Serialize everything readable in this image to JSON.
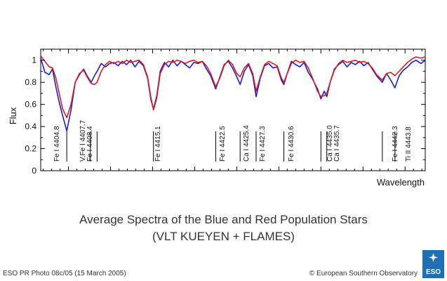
{
  "chart_data": {
    "type": "line",
    "title": "Average Spectra of the Blue and Red Population Stars",
    "subtitle": "(VLT KUEYEN + FLAMES)",
    "xlabel": "Wavelength",
    "ylabel": "Flux",
    "ylim": [
      0,
      1.1
    ],
    "xlim": [
      4401.7,
      4447.4
    ],
    "yticks": [
      "0",
      "0.2",
      "0.4",
      "0.6",
      "0.8",
      "1"
    ],
    "grid": false,
    "series": [
      {
        "color": "#1a1adc",
        "points": [
          [
            4401.7,
            1.02
          ],
          [
            4402.2,
            0.89
          ],
          [
            4402.7,
            0.87
          ],
          [
            4403.1,
            0.92
          ],
          [
            4403.5,
            0.76
          ],
          [
            4403.9,
            0.62
          ],
          [
            4404.3,
            0.5
          ],
          [
            4404.8,
            0.36
          ],
          [
            4405.3,
            0.55
          ],
          [
            4405.8,
            0.8
          ],
          [
            4406.3,
            0.87
          ],
          [
            4406.8,
            0.92
          ],
          [
            4407.2,
            0.86
          ],
          [
            4407.7,
            0.8
          ],
          [
            4408.1,
            0.86
          ],
          [
            4408.4,
            0.9
          ],
          [
            4408.9,
            0.97
          ],
          [
            4409.4,
            0.94
          ],
          [
            4409.9,
            0.97
          ],
          [
            4410.4,
            0.98
          ],
          [
            4410.9,
            0.95
          ],
          [
            4411.4,
            0.99
          ],
          [
            4411.9,
            0.96
          ],
          [
            4412.4,
            1.0
          ],
          [
            4412.9,
            0.94
          ],
          [
            4413.4,
            0.99
          ],
          [
            4413.9,
            0.95
          ],
          [
            4414.4,
            0.84
          ],
          [
            4414.8,
            0.64
          ],
          [
            4415.1,
            0.56
          ],
          [
            4415.5,
            0.68
          ],
          [
            4415.9,
            0.9
          ],
          [
            4416.4,
            0.98
          ],
          [
            4416.9,
            0.94
          ],
          [
            4417.4,
            1.0
          ],
          [
            4417.9,
            0.95
          ],
          [
            4418.4,
            0.99
          ],
          [
            4418.9,
            0.96
          ],
          [
            4419.4,
            0.93
          ],
          [
            4419.9,
            0.98
          ],
          [
            4420.4,
            0.97
          ],
          [
            4420.9,
            0.99
          ],
          [
            4421.4,
            0.92
          ],
          [
            4421.9,
            0.86
          ],
          [
            4422.5,
            0.74
          ],
          [
            4423.0,
            0.85
          ],
          [
            4423.5,
            0.96
          ],
          [
            4424.0,
            0.99
          ],
          [
            4424.5,
            0.93
          ],
          [
            4425.0,
            0.85
          ],
          [
            4425.4,
            0.78
          ],
          [
            4425.9,
            0.9
          ],
          [
            4426.4,
            0.96
          ],
          [
            4426.9,
            0.86
          ],
          [
            4427.3,
            0.67
          ],
          [
            4427.8,
            0.84
          ],
          [
            4428.3,
            0.95
          ],
          [
            4428.8,
            0.97
          ],
          [
            4429.3,
            0.93
          ],
          [
            4429.8,
            0.94
          ],
          [
            4430.3,
            0.82
          ],
          [
            4430.6,
            0.78
          ],
          [
            4431.0,
            0.88
          ],
          [
            4431.5,
            0.99
          ],
          [
            4432.0,
            0.96
          ],
          [
            4432.5,
            0.94
          ],
          [
            4433.0,
            0.98
          ],
          [
            4433.5,
            0.89
          ],
          [
            4434.0,
            0.83
          ],
          [
            4434.6,
            0.74
          ],
          [
            4435.0,
            0.65
          ],
          [
            4435.4,
            0.72
          ],
          [
            4435.7,
            0.67
          ],
          [
            4436.1,
            0.8
          ],
          [
            4436.6,
            0.92
          ],
          [
            4437.1,
            0.96
          ],
          [
            4437.6,
            0.99
          ],
          [
            4438.1,
            0.94
          ],
          [
            4438.6,
            0.98
          ],
          [
            4439.1,
            0.96
          ],
          [
            4439.6,
            0.99
          ],
          [
            4440.1,
            0.95
          ],
          [
            4440.6,
            0.98
          ],
          [
            4441.1,
            0.92
          ],
          [
            4441.6,
            0.86
          ],
          [
            4442.3,
            0.8
          ],
          [
            4442.8,
            0.88
          ],
          [
            4443.3,
            0.82
          ],
          [
            4443.8,
            0.75
          ],
          [
            4444.3,
            0.86
          ],
          [
            4444.8,
            0.91
          ],
          [
            4445.3,
            0.94
          ],
          [
            4445.8,
            0.98
          ],
          [
            4446.3,
            1.0
          ],
          [
            4446.9,
            0.97
          ],
          [
            4447.4,
            1.0
          ]
        ]
      },
      {
        "color": "#dc1a1a",
        "points": [
          [
            4401.7,
            1.04
          ],
          [
            4402.2,
            0.99
          ],
          [
            4402.7,
            0.94
          ],
          [
            4403.1,
            0.93
          ],
          [
            4403.5,
            0.84
          ],
          [
            4403.9,
            0.7
          ],
          [
            4404.3,
            0.56
          ],
          [
            4404.8,
            0.48
          ],
          [
            4405.3,
            0.6
          ],
          [
            4405.8,
            0.8
          ],
          [
            4406.3,
            0.88
          ],
          [
            4406.8,
            0.91
          ],
          [
            4407.2,
            0.85
          ],
          [
            4407.7,
            0.79
          ],
          [
            4408.1,
            0.78
          ],
          [
            4408.4,
            0.8
          ],
          [
            4408.9,
            0.9
          ],
          [
            4409.4,
            0.96
          ],
          [
            4409.9,
            0.99
          ],
          [
            4410.4,
            0.97
          ],
          [
            4410.9,
            0.99
          ],
          [
            4411.4,
            0.97
          ],
          [
            4411.9,
            1.0
          ],
          [
            4412.4,
            0.98
          ],
          [
            4412.9,
            0.99
          ],
          [
            4413.4,
            1.0
          ],
          [
            4413.9,
            0.96
          ],
          [
            4414.4,
            0.85
          ],
          [
            4414.8,
            0.66
          ],
          [
            4415.1,
            0.55
          ],
          [
            4415.5,
            0.66
          ],
          [
            4415.9,
            0.88
          ],
          [
            4416.4,
            0.96
          ],
          [
            4416.9,
            0.99
          ],
          [
            4417.4,
            0.98
          ],
          [
            4417.9,
            1.0
          ],
          [
            4418.4,
            0.99
          ],
          [
            4418.9,
            0.97
          ],
          [
            4419.4,
            0.99
          ],
          [
            4419.9,
            1.0
          ],
          [
            4420.4,
            0.98
          ],
          [
            4420.9,
            0.99
          ],
          [
            4421.4,
            0.95
          ],
          [
            4421.9,
            0.88
          ],
          [
            4422.5,
            0.76
          ],
          [
            4423.0,
            0.84
          ],
          [
            4423.5,
            0.95
          ],
          [
            4424.0,
            1.0
          ],
          [
            4424.5,
            0.96
          ],
          [
            4425.0,
            0.88
          ],
          [
            4425.4,
            0.85
          ],
          [
            4425.9,
            0.93
          ],
          [
            4426.4,
            0.97
          ],
          [
            4426.9,
            0.88
          ],
          [
            4427.3,
            0.72
          ],
          [
            4427.8,
            0.85
          ],
          [
            4428.3,
            0.96
          ],
          [
            4428.8,
            0.99
          ],
          [
            4429.3,
            0.97
          ],
          [
            4429.8,
            0.95
          ],
          [
            4430.3,
            0.84
          ],
          [
            4430.6,
            0.8
          ],
          [
            4431.0,
            0.88
          ],
          [
            4431.5,
            0.97
          ],
          [
            4432.0,
            1.0
          ],
          [
            4432.5,
            0.98
          ],
          [
            4433.0,
            0.99
          ],
          [
            4433.5,
            0.93
          ],
          [
            4434.0,
            0.84
          ],
          [
            4434.6,
            0.72
          ],
          [
            4435.0,
            0.67
          ],
          [
            4435.4,
            0.68
          ],
          [
            4435.7,
            0.7
          ],
          [
            4436.1,
            0.8
          ],
          [
            4436.6,
            0.91
          ],
          [
            4437.1,
            0.97
          ],
          [
            4437.6,
            1.0
          ],
          [
            4438.1,
            0.98
          ],
          [
            4438.6,
            0.99
          ],
          [
            4439.1,
            1.0
          ],
          [
            4439.6,
            0.98
          ],
          [
            4440.1,
            0.99
          ],
          [
            4440.6,
            0.97
          ],
          [
            4441.1,
            0.93
          ],
          [
            4441.6,
            0.87
          ],
          [
            4442.3,
            0.82
          ],
          [
            4442.8,
            0.88
          ],
          [
            4443.3,
            0.89
          ],
          [
            4443.8,
            0.86
          ],
          [
            4444.3,
            0.9
          ],
          [
            4444.8,
            0.94
          ],
          [
            4445.3,
            0.98
          ],
          [
            4445.8,
            1.01
          ],
          [
            4446.3,
            1.03
          ],
          [
            4446.9,
            1.02
          ],
          [
            4447.4,
            1.03
          ]
        ]
      }
    ],
    "annotations": [
      {
        "text": "Fe I 4404.8",
        "x": 4404.8
      },
      {
        "text": "V,Fe I 4407.7",
        "x": 4407.6
      },
      {
        "text": "Fe I 4408.4",
        "x": 4408.4
      },
      {
        "text": "Fe I 4415.1",
        "x": 4415.1
      },
      {
        "text": "Fe I 4422.5",
        "x": 4422.5
      },
      {
        "text": "Ca I 4425.4",
        "x": 4425.4
      },
      {
        "text": "Fe I 4427.3",
        "x": 4427.3
      },
      {
        "text": "Fe I 4430.6",
        "x": 4430.6
      },
      {
        "text": "Ca I 4435.0",
        "x": 4435.0
      },
      {
        "text": "Ca I 4435.7",
        "x": 4435.7
      },
      {
        "text": "Fe I 4442.3",
        "x": 4442.3
      },
      {
        "text": "Ti II 4443.8",
        "x": 4443.8
      }
    ]
  },
  "footer": {
    "left": "ESO PR Photo 08c/05 (15 March 2005)",
    "right": "© European Southern Observatory"
  },
  "logo": {
    "text": "ESO",
    "color": "#1f6fb4"
  }
}
